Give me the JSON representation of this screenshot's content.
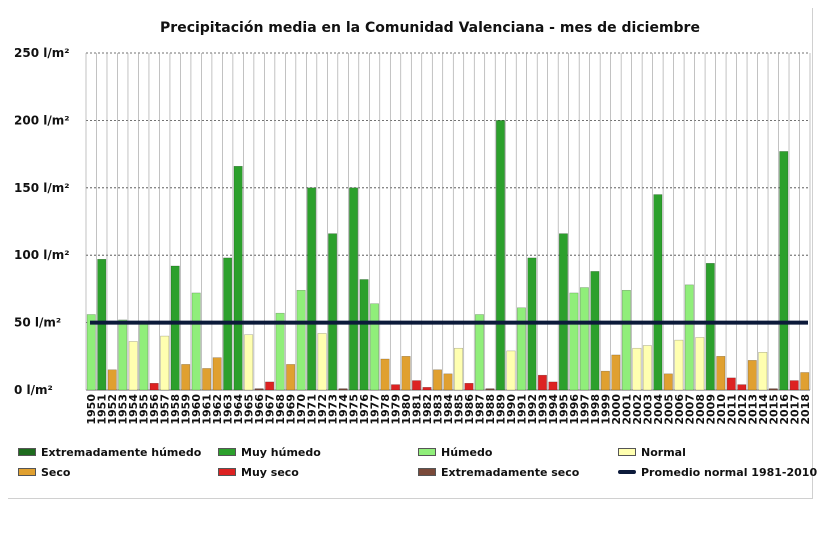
{
  "chart_data": {
    "type": "bar",
    "title": "Precipitación media en la Comunidad Valenciana - mes de diciembre",
    "xlabel": "",
    "ylabel": "",
    "ylim": [
      0,
      250
    ],
    "ytick_labels": [
      "0 l/m²",
      "50 l/m²",
      "100 l/m²",
      "150 l/m²",
      "200 l/m²",
      "250 l/m²"
    ],
    "ytick_values": [
      0,
      50,
      100,
      150,
      200,
      250
    ],
    "grid": true,
    "legend_position": "bottom",
    "colors": {
      "Extremadamente húmedo": "#1e6b1e",
      "Muy húmedo": "#2ca02c",
      "Húmedo": "#90ee7a",
      "Normal": "#ffffb0",
      "Seco": "#e0a030",
      "Muy seco": "#dd2222",
      "Extremadamente seco": "#7a4a3a",
      "Promedio normal 1981-2010": "#0c1a3a"
    },
    "categories": [
      "1950",
      "1951",
      "1952",
      "1953",
      "1954",
      "1955",
      "1956",
      "1957",
      "1958",
      "1959",
      "1960",
      "1961",
      "1962",
      "1963",
      "1964",
      "1965",
      "1966",
      "1967",
      "1968",
      "1969",
      "1970",
      "1971",
      "1972",
      "1973",
      "1974",
      "1975",
      "1976",
      "1977",
      "1978",
      "1979",
      "1980",
      "1981",
      "1982",
      "1983",
      "1984",
      "1985",
      "1986",
      "1987",
      "1988",
      "1989",
      "1990",
      "1991",
      "1992",
      "1993",
      "1994",
      "1995",
      "1996",
      "1997",
      "1998",
      "1999",
      "2000",
      "2001",
      "2002",
      "2003",
      "2004",
      "2005",
      "2006",
      "2007",
      "2008",
      "2009",
      "2010",
      "2011",
      "2012",
      "2013",
      "2014",
      "2015",
      "2016",
      "2017",
      "2018"
    ],
    "values": [
      56,
      97,
      15,
      52,
      36,
      50,
      5,
      40,
      92,
      19,
      72,
      16,
      24,
      98,
      166,
      41,
      1,
      6,
      57,
      19,
      74,
      150,
      42,
      116,
      1,
      150,
      82,
      64,
      23,
      4,
      25,
      7,
      2,
      15,
      12,
      31,
      5,
      56,
      1,
      200,
      29,
      61,
      98,
      11,
      6,
      116,
      72,
      76,
      88,
      14,
      26,
      74,
      31,
      33,
      145,
      12,
      37,
      78,
      39,
      94,
      25,
      9,
      4,
      22,
      28,
      1,
      177,
      7,
      13
    ],
    "classes": [
      "Húmedo",
      "Muy húmedo",
      "Seco",
      "Húmedo",
      "Normal",
      "Húmedo",
      "Muy seco",
      "Normal",
      "Muy húmedo",
      "Seco",
      "Húmedo",
      "Seco",
      "Seco",
      "Muy húmedo",
      "Muy húmedo",
      "Normal",
      "Extremadamente seco",
      "Muy seco",
      "Húmedo",
      "Seco",
      "Húmedo",
      "Muy húmedo",
      "Normal",
      "Muy húmedo",
      "Extremadamente seco",
      "Muy húmedo",
      "Muy húmedo",
      "Húmedo",
      "Seco",
      "Muy seco",
      "Seco",
      "Muy seco",
      "Muy seco",
      "Seco",
      "Seco",
      "Normal",
      "Muy seco",
      "Húmedo",
      "Extremadamente seco",
      "Muy húmedo",
      "Normal",
      "Húmedo",
      "Muy húmedo",
      "Muy seco",
      "Muy seco",
      "Muy húmedo",
      "Húmedo",
      "Húmedo",
      "Muy húmedo",
      "Seco",
      "Seco",
      "Húmedo",
      "Normal",
      "Normal",
      "Muy húmedo",
      "Seco",
      "Normal",
      "Húmedo",
      "Normal",
      "Muy húmedo",
      "Seco",
      "Muy seco",
      "Muy seco",
      "Seco",
      "Normal",
      "Extremadamente seco",
      "Muy húmedo",
      "Muy seco",
      "Seco"
    ],
    "reference_line": {
      "name": "Promedio normal 1981-2010",
      "value": 50
    },
    "legend": [
      "Extremadamente húmedo",
      "Muy húmedo",
      "Húmedo",
      "Normal",
      "Seco",
      "Muy seco",
      "Extremadamente seco",
      "Promedio normal 1981-2010"
    ]
  }
}
